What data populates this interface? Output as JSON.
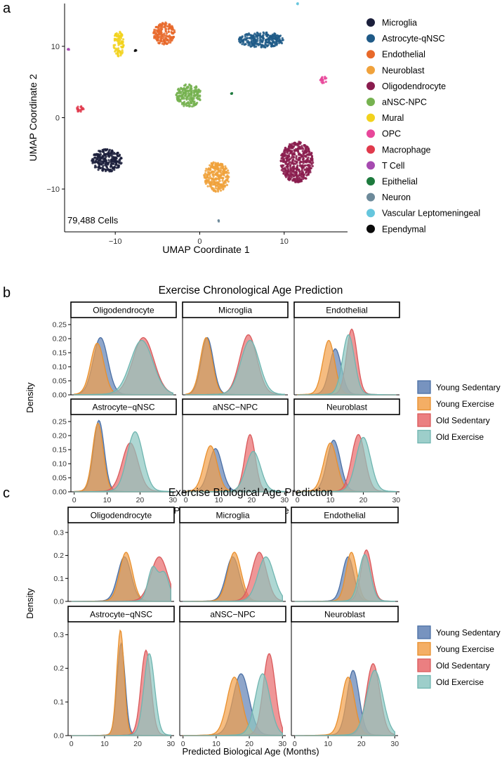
{
  "panel_labels": {
    "a": "a",
    "b": "b",
    "c": "c"
  },
  "legend_title_series": [
    "Young Sedentary",
    "Young Exercise",
    "Old Sedentary",
    "Old Exercise"
  ],
  "chart_data": [
    {
      "type": "scatter",
      "panel": "a",
      "title": "",
      "xlabel": "UMAP Coordinate 1",
      "ylabel": "UMAP Coordinate 2",
      "xlim": [
        -16,
        17.5
      ],
      "ylim": [
        -16,
        16
      ],
      "xticks": [
        -10,
        0,
        10
      ],
      "yticks": [
        -10,
        0,
        10
      ],
      "cell_count_label": "79,488 Cells",
      "clusters": [
        {
          "name": "Microglia",
          "color": "#1b1f3b",
          "center": [
            -11,
            -6
          ],
          "spread": [
            3.6,
            3.2
          ],
          "shape": "blob"
        },
        {
          "name": "Astrocyte-qNSC",
          "color": "#1f5a87",
          "center": [
            7.3,
            10.9
          ],
          "spread": [
            5.4,
            2.2
          ],
          "shape": "blob"
        },
        {
          "name": "Endothelial",
          "color": "#e8692a",
          "center": [
            -4.2,
            11.8
          ],
          "spread": [
            2.6,
            3.1
          ],
          "shape": "blob"
        },
        {
          "name": "Neuroblast",
          "color": "#f0a23c",
          "center": [
            2,
            -8.3
          ],
          "spread": [
            3.0,
            4.2
          ],
          "shape": "blob"
        },
        {
          "name": "Oligodendrocyte",
          "color": "#8a1c4e",
          "center": [
            11.5,
            -6.2
          ],
          "spread": [
            3.9,
            5.7
          ],
          "shape": "blob"
        },
        {
          "name": "aNSC-NPC",
          "color": "#76b250",
          "center": [
            -1.3,
            3.1
          ],
          "spread": [
            3.0,
            3.2
          ],
          "shape": "blob"
        },
        {
          "name": "Mural",
          "color": "#f2d21d",
          "center": [
            -9.6,
            10.3
          ],
          "spread": [
            1.2,
            3.6
          ],
          "shape": "blob"
        },
        {
          "name": "OPC",
          "color": "#e8479a",
          "center": [
            14.6,
            5.3
          ],
          "spread": [
            0.9,
            1
          ],
          "shape": "blob"
        },
        {
          "name": "Macrophage",
          "color": "#e03a4c",
          "center": [
            -14.2,
            1.2
          ],
          "spread": [
            0.9,
            1
          ],
          "shape": "blob"
        },
        {
          "name": "T Cell",
          "color": "#a64ab0",
          "center": [
            -15.6,
            9.5
          ],
          "spread": [
            0.3,
            0.3
          ],
          "shape": "blob"
        },
        {
          "name": "Epithelial",
          "color": "#1d7a3d",
          "center": [
            3.8,
            3.4
          ],
          "spread": [
            0.2,
            0.2
          ],
          "shape": "blob"
        },
        {
          "name": "Neuron",
          "color": "#6d8a9a",
          "center": [
            2.2,
            -14.5
          ],
          "spread": [
            0.25,
            0.3
          ],
          "shape": "blob"
        },
        {
          "name": "Vascular Leptomeningeal",
          "color": "#66c6dd",
          "center": [
            11.6,
            16
          ],
          "spread": [
            0.2,
            0.2
          ],
          "shape": "blob"
        },
        {
          "name": "Ependymal",
          "color": "#0a0a0a",
          "center": [
            -7.6,
            9.4
          ],
          "spread": [
            0.2,
            0.2
          ],
          "shape": "blob"
        }
      ]
    },
    {
      "type": "area",
      "panel": "b",
      "title": "Exercise Chronological Age Prediction",
      "xlabel": "Predicted Chronological Age (Months)",
      "ylabel": "Density",
      "xlim": [
        -1,
        31
      ],
      "ylim": [
        0,
        0.265
      ],
      "xticks": [
        0,
        10,
        20,
        30
      ],
      "yticks": [
        0,
        0.05,
        0.1,
        0.15,
        0.2,
        0.25
      ],
      "ytick_labels": [
        "0.00",
        "0.05",
        "0.10",
        "0.15",
        "0.20",
        "0.25"
      ],
      "facets": [
        {
          "name": "Oligodendrocyte",
          "series": [
            {
              "name": "Young Sedentary",
              "peaks": [
                [
                  8,
                  2.2,
                  0.2
                ]
              ]
            },
            {
              "name": "Young Exercise",
              "peaks": [
                [
                  7,
                  2.0,
                  0.18
                ]
              ]
            },
            {
              "name": "Old Sedentary",
              "peaks": [
                [
                  21,
                  3.2,
                  0.2
                ]
              ]
            },
            {
              "name": "Old Exercise",
              "peaks": [
                [
                  20.5,
                  3.4,
                  0.19
                ]
              ]
            }
          ]
        },
        {
          "name": "Microglia",
          "series": [
            {
              "name": "Young Sedentary",
              "peaks": [
                [
                  6.5,
                  1.8,
                  0.2
                ]
              ]
            },
            {
              "name": "Young Exercise",
              "peaks": [
                [
                  6.2,
                  1.8,
                  0.2
                ]
              ]
            },
            {
              "name": "Old Sedentary",
              "peaks": [
                [
                  19,
                  2.6,
                  0.21
                ]
              ]
            },
            {
              "name": "Old Exercise",
              "peaks": [
                [
                  19.5,
                  2.8,
                  0.19
                ]
              ]
            }
          ]
        },
        {
          "name": "Endothelial",
          "series": [
            {
              "name": "Young Sedentary",
              "peaks": [
                [
                  11.5,
                  1.8,
                  0.16
                ]
              ]
            },
            {
              "name": "Young Exercise",
              "peaks": [
                [
                  9.5,
                  1.8,
                  0.19
                ]
              ]
            },
            {
              "name": "Old Sedentary",
              "peaks": [
                [
                  16.5,
                  1.6,
                  0.23
                ]
              ]
            },
            {
              "name": "Old Exercise",
              "peaks": [
                [
                  15.5,
                  1.8,
                  0.21
                ]
              ]
            }
          ]
        },
        {
          "name": "Astrocyte−qNSC",
          "series": [
            {
              "name": "Young Sedentary",
              "peaks": [
                [
                  7.5,
                  1.6,
                  0.25
                ]
              ]
            },
            {
              "name": "Young Exercise",
              "peaks": [
                [
                  7.2,
                  1.6,
                  0.24
                ]
              ]
            },
            {
              "name": "Old Sedentary",
              "peaks": [
                [
                  17,
                  2.4,
                  0.17
                ]
              ]
            },
            {
              "name": "Old Exercise",
              "peaks": [
                [
                  18.5,
                  2.4,
                  0.21
                ]
              ]
            }
          ]
        },
        {
          "name": "aNSC−NPC",
          "series": [
            {
              "name": "Young Sedentary",
              "peaks": [
                [
                  9,
                  2.0,
                  0.15
                ]
              ]
            },
            {
              "name": "Young Exercise",
              "peaks": [
                [
                  7.5,
                  2.0,
                  0.16
                ]
              ]
            },
            {
              "name": "Old Sedentary",
              "peaks": [
                [
                  19.5,
                  1.6,
                  0.2
                ]
              ]
            },
            {
              "name": "Old Exercise",
              "peaks": [
                [
                  20.5,
                  2.2,
                  0.14
                ]
              ]
            }
          ]
        },
        {
          "name": "Neuroblast",
          "series": [
            {
              "name": "Young Sedentary",
              "peaks": [
                [
                  11,
                  2.0,
                  0.18
                ]
              ]
            },
            {
              "name": "Young Exercise",
              "peaks": [
                [
                  10,
                  2.0,
                  0.17
                ]
              ]
            },
            {
              "name": "Old Sedentary",
              "peaks": [
                [
                  18.5,
                  2.0,
                  0.2
                ]
              ]
            },
            {
              "name": "Old Exercise",
              "peaks": [
                [
                  20,
                  2.2,
                  0.19
                ]
              ]
            }
          ]
        }
      ]
    },
    {
      "type": "area",
      "panel": "c",
      "title": "Exercise Biological Age Prediction",
      "xlabel": "Predicted Biological Age (Months)",
      "ylabel": "Density",
      "xlim": [
        -1,
        31
      ],
      "ylim": [
        0,
        0.33
      ],
      "xticks": [
        0,
        10,
        20,
        30
      ],
      "yticks": [
        0,
        0.1,
        0.2,
        0.3
      ],
      "ytick_labels": [
        "0.0",
        "0.1",
        "0.2",
        "0.3"
      ],
      "facets": [
        {
          "name": "Oligodendrocyte",
          "series": [
            {
              "name": "Young Sedentary",
              "peaks": [
                [
                  16,
                  2.0,
                  0.19
                ]
              ]
            },
            {
              "name": "Young Exercise",
              "peaks": [
                [
                  16.5,
                  1.9,
                  0.21
                ]
              ]
            },
            {
              "name": "Old Sedentary",
              "peaks": [
                [
                  26.5,
                  2.5,
                  0.19
                ]
              ]
            },
            {
              "name": "Old Exercise",
              "peaks": [
                [
                  24.5,
                  1.4,
                  0.14
                ],
                [
                  28,
                  1.5,
                  0.12
                ]
              ]
            }
          ]
        },
        {
          "name": "Microglia",
          "series": [
            {
              "name": "Young Sedentary",
              "peaks": [
                [
                  15,
                  2.0,
                  0.19
                ]
              ]
            },
            {
              "name": "Young Exercise",
              "peaks": [
                [
                  15.5,
                  2.0,
                  0.21
                ]
              ]
            },
            {
              "name": "Old Sedentary",
              "peaks": [
                [
                  23,
                  2.2,
                  0.21
                ]
              ]
            },
            {
              "name": "Old Exercise",
              "peaks": [
                [
                  25,
                  2.4,
                  0.19
                ]
              ]
            }
          ]
        },
        {
          "name": "Endothelial",
          "series": [
            {
              "name": "Young Sedentary",
              "peaks": [
                [
                  16,
                  1.7,
                  0.19
                ]
              ]
            },
            {
              "name": "Young Exercise",
              "peaks": [
                [
                  17,
                  1.6,
                  0.21
                ]
              ]
            },
            {
              "name": "Old Sedentary",
              "peaks": [
                [
                  21.5,
                  1.6,
                  0.22
                ]
              ]
            },
            {
              "name": "Old Exercise",
              "peaks": [
                [
                  21,
                  1.7,
                  0.2
                ]
              ]
            }
          ]
        },
        {
          "name": "Astrocyte−qNSC",
          "series": [
            {
              "name": "Young Sedentary",
              "peaks": [
                [
                  15,
                  1.2,
                  0.27
                ]
              ]
            },
            {
              "name": "Young Exercise",
              "peaks": [
                [
                  14.8,
                  1.1,
                  0.31
                ]
              ]
            },
            {
              "name": "Old Sedentary",
              "peaks": [
                [
                  22.5,
                  1.5,
                  0.25
                ]
              ]
            },
            {
              "name": "Old Exercise",
              "peaks": [
                [
                  23.5,
                  1.6,
                  0.24
                ]
              ]
            }
          ]
        },
        {
          "name": "aNSC−NPC",
          "series": [
            {
              "name": "Young Sedentary",
              "peaks": [
                [
                  17.5,
                  2.4,
                  0.18
                ]
              ]
            },
            {
              "name": "Young Exercise",
              "peaks": [
                [
                  15.5,
                  2.2,
                  0.17
                ]
              ]
            },
            {
              "name": "Old Sedentary",
              "peaks": [
                [
                  26,
                  1.8,
                  0.24
                ]
              ]
            },
            {
              "name": "Old Exercise",
              "peaks": [
                [
                  24,
                  2.2,
                  0.18
                ]
              ]
            }
          ]
        },
        {
          "name": "Neuroblast",
          "series": [
            {
              "name": "Young Sedentary",
              "peaks": [
                [
                  17.5,
                  1.8,
                  0.19
                ]
              ]
            },
            {
              "name": "Young Exercise",
              "peaks": [
                [
                  16,
                  1.9,
                  0.17
                ]
              ]
            },
            {
              "name": "Old Sedentary",
              "peaks": [
                [
                  23.5,
                  2.0,
                  0.21
                ]
              ]
            },
            {
              "name": "Old Exercise",
              "peaks": [
                [
                  24,
                  2.4,
                  0.19
                ]
              ]
            }
          ]
        }
      ]
    }
  ],
  "series_colors": {
    "Young Sedentary": {
      "fill": "#5f80b4",
      "stroke": "#4a6fa5"
    },
    "Young Exercise": {
      "fill": "#f2a04a",
      "stroke": "#e8902e"
    },
    "Old Sedentary": {
      "fill": "#e8696b",
      "stroke": "#d95a5c"
    },
    "Old Exercise": {
      "fill": "#8cc6c1",
      "stroke": "#6fb5b0"
    }
  }
}
